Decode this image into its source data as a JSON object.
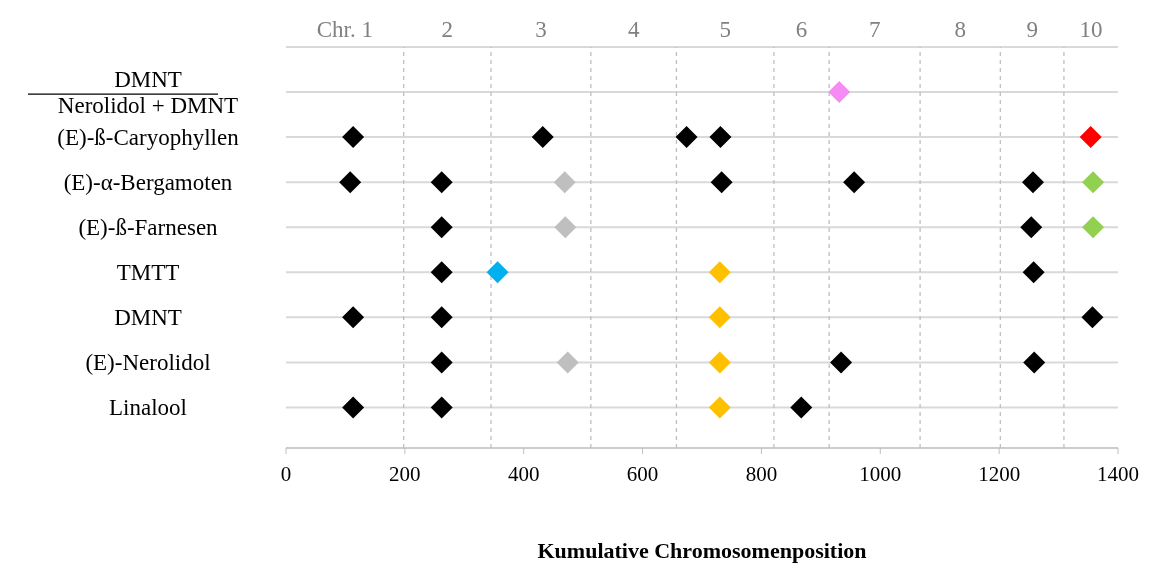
{
  "chart_data": {
    "type": "scatter",
    "orientation": "horizontal",
    "marker": "diamond",
    "grid": "y",
    "xlabel": "Kumulative Chromosomenposition",
    "categories": [
      "DMNT\nNerolidol + DMNT",
      "(E)-ß-Caryophyllen",
      "(E)-α-Bergamoten",
      "(E)-ß-Farnesen",
      "TMTT",
      "DMNT",
      "(E)-Nerolidol",
      "Linalool"
    ],
    "xlim": [
      0,
      1400
    ],
    "xticks": [
      0,
      200,
      400,
      600,
      800,
      1000,
      1200,
      1400
    ],
    "annotations": [
      "Chr. 1",
      "2",
      "3",
      "4",
      "5",
      "6",
      "7",
      "8",
      "9",
      "10"
    ],
    "ref_lines": [
      {
        "axis": "x",
        "value": 198,
        "color": "#bfbfbf",
        "line_style": "dashed"
      },
      {
        "axis": "x",
        "value": 345,
        "color": "#bfbfbf",
        "line_style": "dashed"
      },
      {
        "axis": "x",
        "value": 513,
        "color": "#bfbfbf",
        "line_style": "dashed"
      },
      {
        "axis": "x",
        "value": 657,
        "color": "#bfbfbf",
        "line_style": "dashed"
      },
      {
        "axis": "x",
        "value": 821,
        "color": "#bfbfbf",
        "line_style": "dashed"
      },
      {
        "axis": "x",
        "value": 914,
        "color": "#bfbfbf",
        "line_style": "dashed"
      },
      {
        "axis": "x",
        "value": 1067,
        "color": "#bfbfbf",
        "line_style": "dashed"
      },
      {
        "axis": "x",
        "value": 1202,
        "color": "#bfbfbf",
        "line_style": "dashed"
      },
      {
        "axis": "x",
        "value": 1309,
        "color": "#bfbfbf",
        "line_style": "dashed"
      }
    ],
    "series": [
      {
        "color": "#000000",
        "values": [
          null,
          113,
          108,
          null,
          null,
          113,
          null,
          113
        ]
      },
      {
        "color": "#000000",
        "values": [
          null,
          null,
          262,
          262,
          262,
          262,
          262,
          262
        ]
      },
      {
        "color": "#000000",
        "values": [
          null,
          432,
          null,
          null,
          null,
          null,
          null,
          null
        ]
      },
      {
        "color": "#000000",
        "values": [
          null,
          674,
          733,
          null,
          null,
          null,
          null,
          null
        ]
      },
      {
        "color": "#000000",
        "values": [
          null,
          731,
          956,
          1254,
          1258,
          1357,
          934,
          867
        ]
      },
      {
        "color": "#000000",
        "values": [
          null,
          null,
          1257,
          null,
          null,
          null,
          1259,
          null
        ]
      },
      {
        "color": "#bfbfbf",
        "values": [
          null,
          null,
          469,
          470,
          null,
          null,
          474,
          null
        ]
      },
      {
        "color": "#00b0f0",
        "values": [
          null,
          null,
          null,
          null,
          356,
          null,
          null,
          null
        ]
      },
      {
        "color": "#ffc000",
        "values": [
          null,
          null,
          null,
          null,
          730,
          730,
          730,
          730
        ]
      },
      {
        "color": "#f48cf4",
        "values": [
          931,
          null,
          null,
          null,
          null,
          null,
          null,
          null
        ]
      },
      {
        "color": "#ff0000",
        "values": [
          null,
          1354,
          null,
          null,
          null,
          null,
          null,
          null
        ]
      },
      {
        "color": "#92d050",
        "values": [
          null,
          null,
          1358,
          1358,
          null,
          null,
          null,
          null
        ]
      }
    ]
  }
}
